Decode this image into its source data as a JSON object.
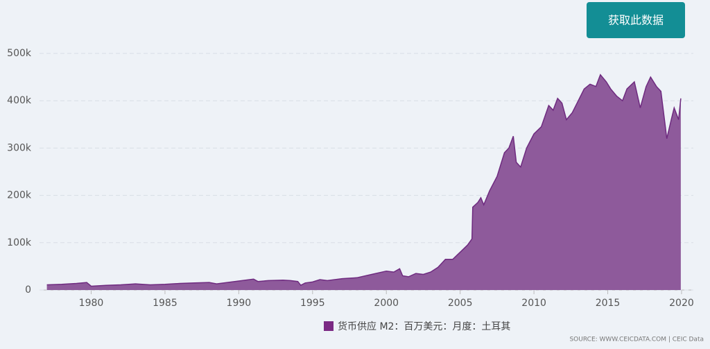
{
  "button": "获取此数据",
  "source": "SOURCE: WWW.CEICDATA.COM | CEIC Data",
  "chart_data": {
    "type": "area",
    "x": [
      1977.0,
      1978,
      1979,
      1979.7,
      1980.0,
      1981,
      1982,
      1983,
      1984,
      1985,
      1986,
      1987,
      1988,
      1988.5,
      1989,
      1990,
      1991,
      1991.3,
      1992,
      1993,
      1993.5,
      1994,
      1994.2,
      1994.5,
      1995,
      1995.5,
      1996,
      1997,
      1998,
      1999,
      2000,
      2000.5,
      2000.9,
      2001.1,
      2001.5,
      2002,
      2002.5,
      2003,
      2003.5,
      2004,
      2004.5,
      2005,
      2005.5,
      2005.8,
      2005.85,
      2006.2,
      2006.4,
      2006.6,
      2007,
      2007.5,
      2008,
      2008.3,
      2008.6,
      2008.8,
      2009.1,
      2009.5,
      2010,
      2010.5,
      2011,
      2011.3,
      2011.6,
      2011.9,
      2012.2,
      2012.6,
      2013,
      2013.4,
      2013.8,
      2014.2,
      2014.5,
      2014.9,
      2015.2,
      2015.6,
      2016,
      2016.3,
      2016.8,
      2017.2,
      2017.6,
      2017.9,
      2018.3,
      2018.6,
      2018.9,
      2019,
      2019.3,
      2019.5,
      2019.8,
      2019.95
    ],
    "series": [
      {
        "name": "货币供应 M2：百万美元：月度：土耳其",
        "color": "#8e5a9b",
        "values": [
          11000,
          12000,
          14000,
          16000,
          8000,
          10000,
          11000,
          13000,
          11000,
          12000,
          14000,
          15000,
          16000,
          13000,
          15000,
          19000,
          23000,
          18000,
          20000,
          21000,
          20000,
          18000,
          10000,
          15000,
          17000,
          22000,
          20000,
          24000,
          26000,
          33000,
          40000,
          38000,
          45000,
          30000,
          28000,
          35000,
          33000,
          38000,
          48000,
          65000,
          65000,
          80000,
          95000,
          108000,
          175000,
          185000,
          195000,
          180000,
          210000,
          240000,
          290000,
          300000,
          325000,
          270000,
          260000,
          300000,
          330000,
          345000,
          390000,
          380000,
          405000,
          395000,
          360000,
          375000,
          400000,
          425000,
          435000,
          430000,
          455000,
          440000,
          425000,
          410000,
          400000,
          425000,
          440000,
          385000,
          430000,
          450000,
          430000,
          420000,
          345000,
          320000,
          360000,
          385000,
          360000,
          405000
        ]
      }
    ],
    "xlim": [
      1976.5,
      2020.8
    ],
    "ylim": [
      0,
      500000
    ],
    "xticks": [
      1980,
      1985,
      1990,
      1995,
      2000,
      2005,
      2010,
      2015,
      2020
    ],
    "yticks": [
      0,
      {
        "value": 100000,
        "label": "100k"
      },
      {
        "value": 200000,
        "label": "200k"
      },
      {
        "value": 300000,
        "label": "300k"
      },
      {
        "value": 400000,
        "label": "400k"
      },
      {
        "value": 500000,
        "label": "500k"
      }
    ],
    "grid": true
  }
}
